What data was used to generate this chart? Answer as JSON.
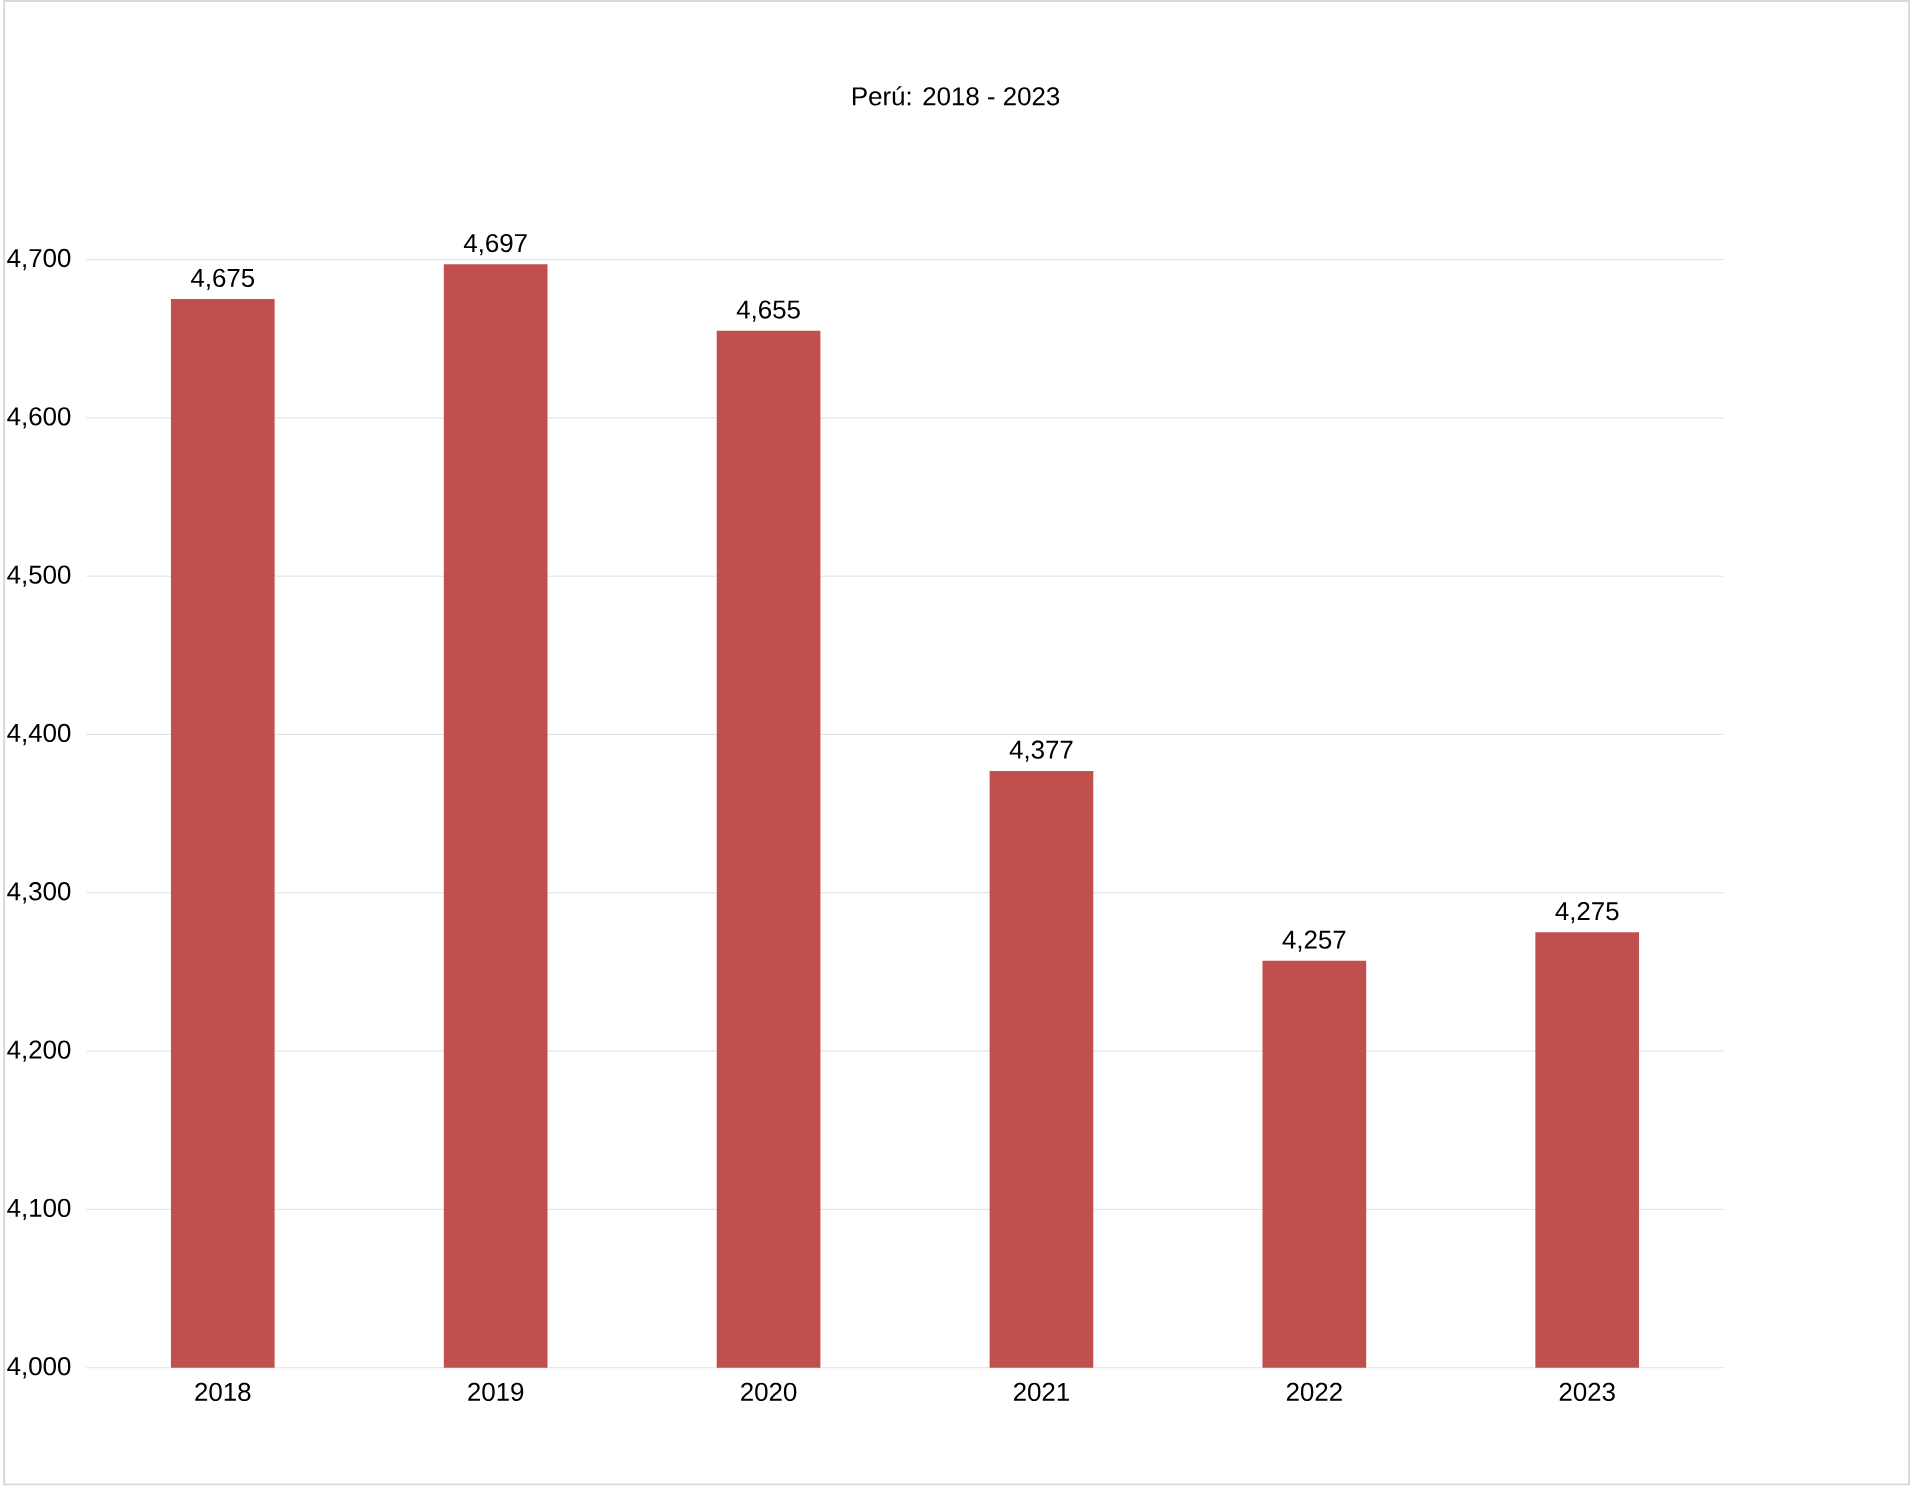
{
  "chart_data": {
    "type": "bar",
    "title": "Perú: 2018 - 2023",
    "categories": [
      "2018",
      "2019",
      "2020",
      "2021",
      "2022",
      "2023"
    ],
    "values": [
      4675,
      4697,
      4655,
      4377,
      4257,
      4275
    ],
    "value_labels": [
      "4,675",
      "4,697",
      "4,655",
      "4,377",
      "4,257",
      "4,275"
    ],
    "color": "#c0504d",
    "ylim": [
      4000,
      4700
    ],
    "yticks": [
      {
        "value": 4000,
        "label": "4,000"
      },
      {
        "value": 4100,
        "label": "4,100"
      },
      {
        "value": 4200,
        "label": "4,200"
      },
      {
        "value": 4300,
        "label": "4,300"
      },
      {
        "value": 4400,
        "label": "4,400"
      },
      {
        "value": 4500,
        "label": "4,500"
      },
      {
        "value": 4600,
        "label": "4,600"
      },
      {
        "value": 4700,
        "label": "4,700"
      }
    ],
    "grid": "y"
  }
}
